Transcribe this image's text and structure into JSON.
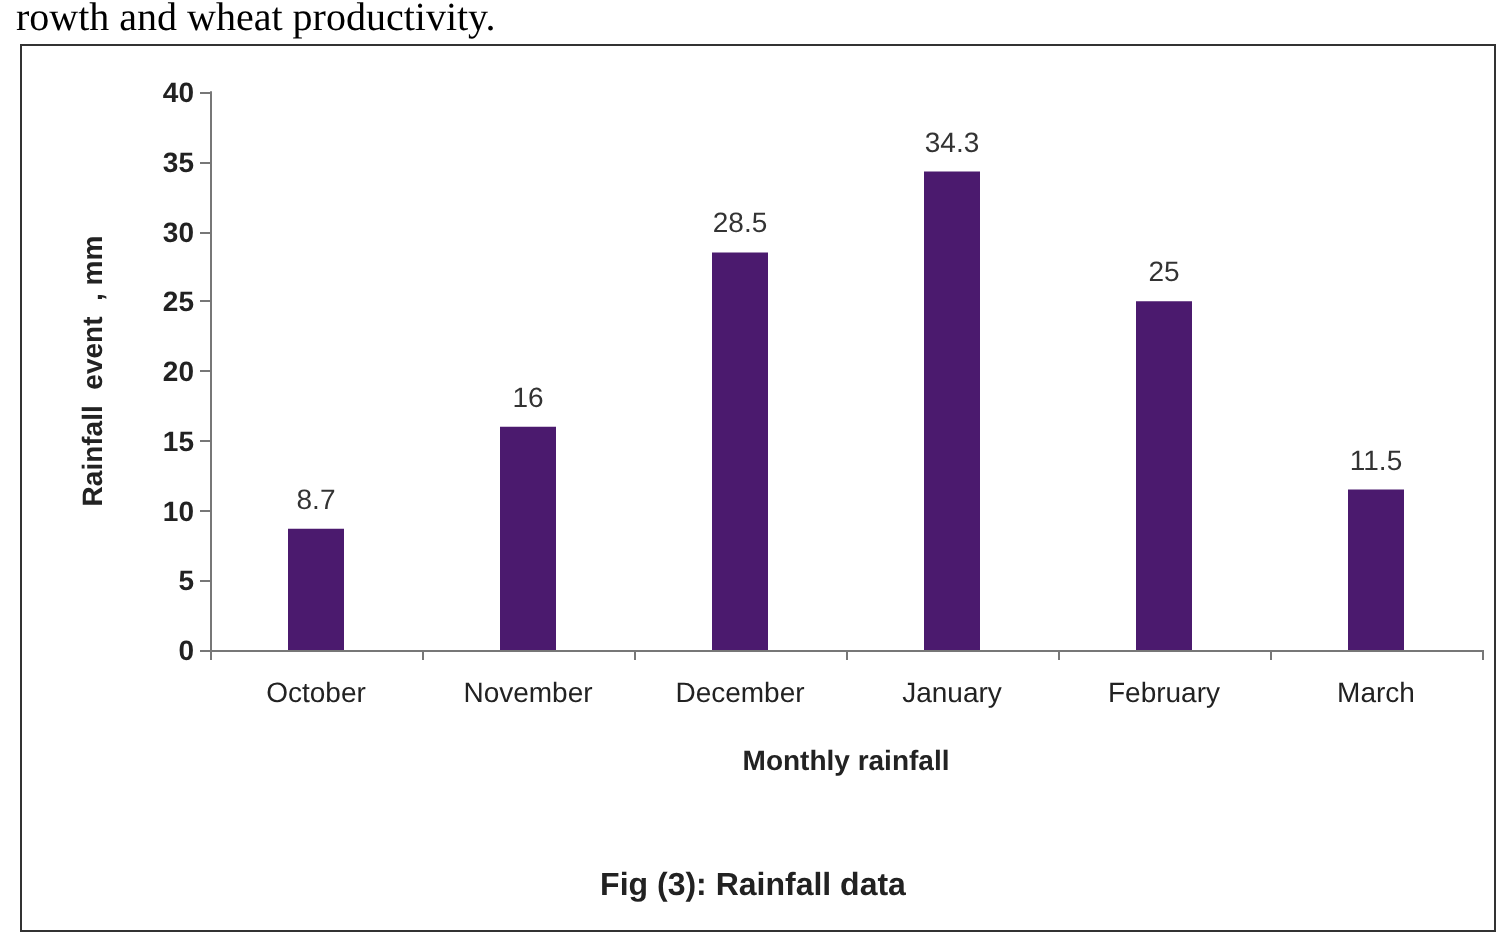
{
  "chart_data": {
    "type": "bar",
    "title": "Fig (3): Rainfall data",
    "xlabel": "Monthly rainfall",
    "ylabel": "Rainfall  event  , mm",
    "annotations": [
      "rowth and wheat productivity."
    ],
    "categories": [
      "October",
      "November",
      "December",
      "January",
      "February",
      "March"
    ],
    "values": [
      8.7,
      16,
      28.5,
      34.3,
      25,
      11.5
    ],
    "color": "#4b1a6e",
    "data_labels": true,
    "ylim": [
      0,
      40
    ],
    "yticks": [
      0,
      5,
      10,
      15,
      20,
      25,
      30,
      35,
      40
    ],
    "grid": false
  }
}
